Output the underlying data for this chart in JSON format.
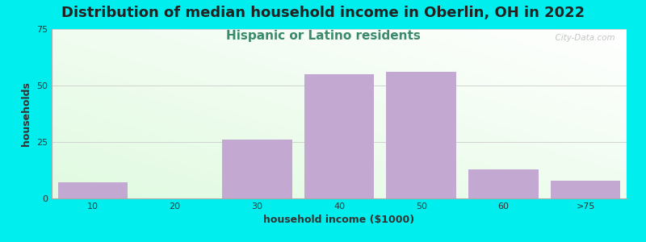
{
  "title": "Distribution of median household income in Oberlin, OH in 2022",
  "subtitle": "Hispanic or Latino residents",
  "xlabel": "household income ($1000)",
  "ylabel": "households",
  "background_color": "#00EEEE",
  "bar_color": "#C3A8D1",
  "categories": [
    "10",
    "20",
    "30",
    "40",
    "50",
    "60",
    ">75"
  ],
  "values": [
    7,
    0,
    26,
    55,
    56,
    13,
    8
  ],
  "ylim": [
    0,
    75
  ],
  "yticks": [
    0,
    25,
    50,
    75
  ],
  "watermark": "  City-Data.com",
  "title_fontsize": 13,
  "subtitle_fontsize": 11,
  "subtitle_color": "#3A8A6E",
  "axis_label_fontsize": 9,
  "tick_fontsize": 8,
  "title_color": "#222222",
  "tick_color": "#333333"
}
